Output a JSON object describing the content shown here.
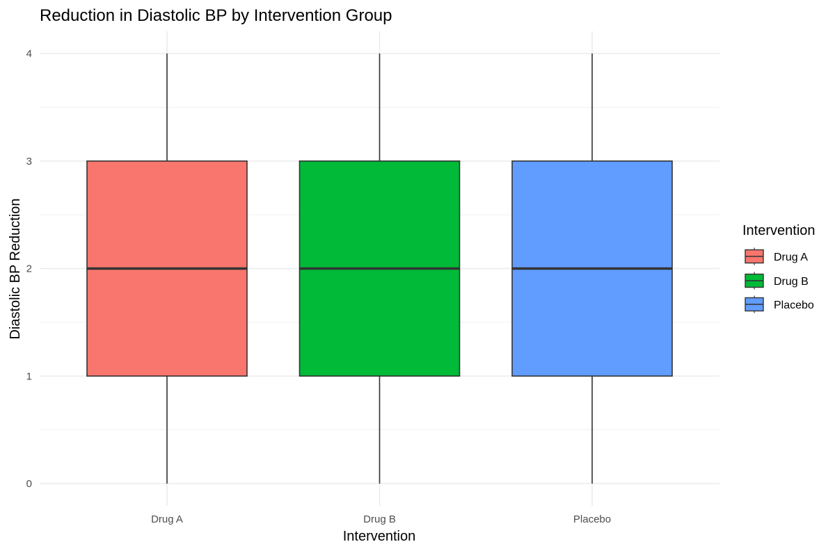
{
  "chart_data": {
    "type": "boxplot",
    "title": "Reduction in Diastolic BP by Intervention Group",
    "xlabel": "Intervention",
    "ylabel": "Diastolic BP Reduction",
    "ylim": [
      0,
      4
    ],
    "yticks": [
      "0",
      "1",
      "2",
      "3",
      "4"
    ],
    "grid": true,
    "legend": {
      "title": "Intervention",
      "position": "right"
    },
    "categories": [
      "Drug A",
      "Drug B",
      "Placebo"
    ],
    "boxes": [
      {
        "category": "Drug A",
        "min": 0,
        "q1": 1,
        "median": 2,
        "q3": 3,
        "max": 4,
        "color": "#F8766D"
      },
      {
        "category": "Drug B",
        "min": 0,
        "q1": 1,
        "median": 2,
        "q3": 3,
        "max": 4,
        "color": "#00BA38"
      },
      {
        "category": "Placebo",
        "min": 0,
        "q1": 1,
        "median": 2,
        "q3": 3,
        "max": 4,
        "color": "#619CFF"
      }
    ]
  }
}
